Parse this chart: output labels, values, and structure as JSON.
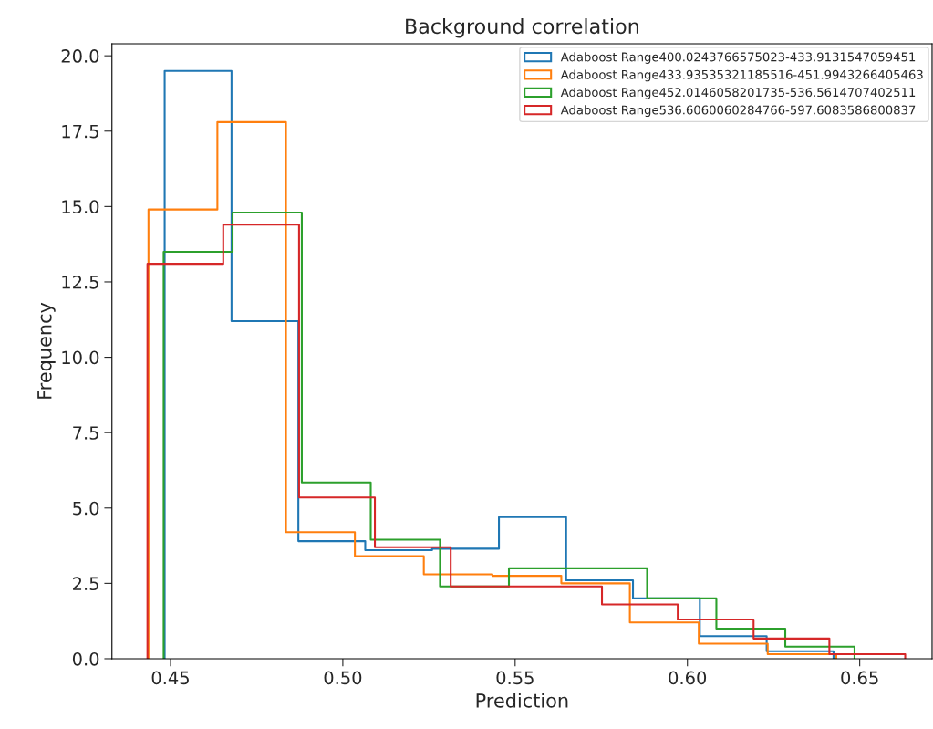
{
  "chart_data": {
    "type": "step",
    "title": "Background correlation",
    "xlabel": "Prediction",
    "ylabel": "Frequency",
    "xlim": [
      0.433,
      0.671
    ],
    "xticks": [
      0.45,
      {
        "value": 0.5,
        "label": "0.50"
      },
      0.55,
      {
        "value": 0.6,
        "label": "0.60"
      },
      0.65
    ],
    "ylim": [
      0,
      20.4
    ],
    "yticks": [
      {
        "value": 0,
        "label": "0.0"
      },
      2.5,
      {
        "value": 5,
        "label": "5.0"
      },
      7.5,
      {
        "value": 10,
        "label": "10.0"
      },
      12.5,
      {
        "value": 15,
        "label": "15.0"
      },
      17.5,
      {
        "value": 20,
        "label": "20.0"
      }
    ],
    "grid": false,
    "legend": "top right",
    "series": [
      {
        "name": "Adaboost Range400.0243766575023-433.9131547059451",
        "color": "#1f77b4",
        "x": [
          0.4483,
          0.4483,
          0.4677,
          0.4871,
          0.5065,
          0.5259,
          0.5453,
          0.5648,
          0.5842,
          0.6036,
          0.623,
          0.6424
        ],
        "values": [
          0,
          19.5,
          11.2,
          3.9,
          3.6,
          3.65,
          4.7,
          2.6,
          2.0,
          0.75,
          0.25,
          0
        ]
      },
      {
        "name": "Adaboost Range433.93535321185516-451.9943266405463",
        "color": "#ff7f0e",
        "x": [
          0.4436,
          0.4436,
          0.4636,
          0.4835,
          0.5035,
          0.5235,
          0.5434,
          0.5634,
          0.5833,
          0.6033,
          0.6233,
          0.6432
        ],
        "values": [
          0,
          14.9,
          17.8,
          4.2,
          3.4,
          2.8,
          2.75,
          2.5,
          1.2,
          0.5,
          0.15,
          0
        ]
      },
      {
        "name": "Adaboost Range452.0146058201735-536.5614707402511",
        "color": "#2ca02c",
        "x": [
          0.448,
          0.448,
          0.468,
          0.4881,
          0.5081,
          0.5282,
          0.5482,
          0.5683,
          0.5883,
          0.6084,
          0.6284,
          0.6485
        ],
        "values": [
          0,
          13.5,
          14.8,
          5.85,
          3.95,
          2.4,
          3.0,
          3.0,
          2.0,
          1.0,
          0.4,
          0
        ]
      },
      {
        "name": "Adaboost Range536.6060060284766-597.6083586800837",
        "color": "#d62728",
        "x": [
          0.4433,
          0.4433,
          0.4653,
          0.4873,
          0.5093,
          0.5313,
          0.5533,
          0.5752,
          0.5972,
          0.6192,
          0.6412,
          0.6632
        ],
        "values": [
          0,
          13.1,
          14.4,
          5.35,
          3.7,
          2.4,
          2.4,
          1.8,
          1.3,
          0.67,
          0.15,
          0
        ]
      }
    ]
  }
}
